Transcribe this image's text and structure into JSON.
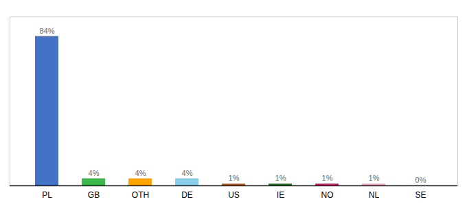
{
  "chart_data": {
    "type": "bar",
    "categories": [
      "PL",
      "GB",
      "OTH",
      "DE",
      "US",
      "IE",
      "NO",
      "NL",
      "SE"
    ],
    "values": [
      84,
      4,
      4,
      4,
      1,
      1,
      1,
      1,
      0
    ],
    "value_labels": [
      "84%",
      "4%",
      "4%",
      "4%",
      "1%",
      "1%",
      "1%",
      "1%",
      "0%"
    ],
    "colors": [
      "#4472C4",
      "#3CB84A",
      "#FFA500",
      "#87CEEB",
      "#C05A1F",
      "#2B7A2B",
      "#E0186A",
      "#F4A7C0",
      "#BBBBBB"
    ],
    "ylim": [
      0,
      95
    ],
    "data_labels": true,
    "tick_labels": "x"
  }
}
